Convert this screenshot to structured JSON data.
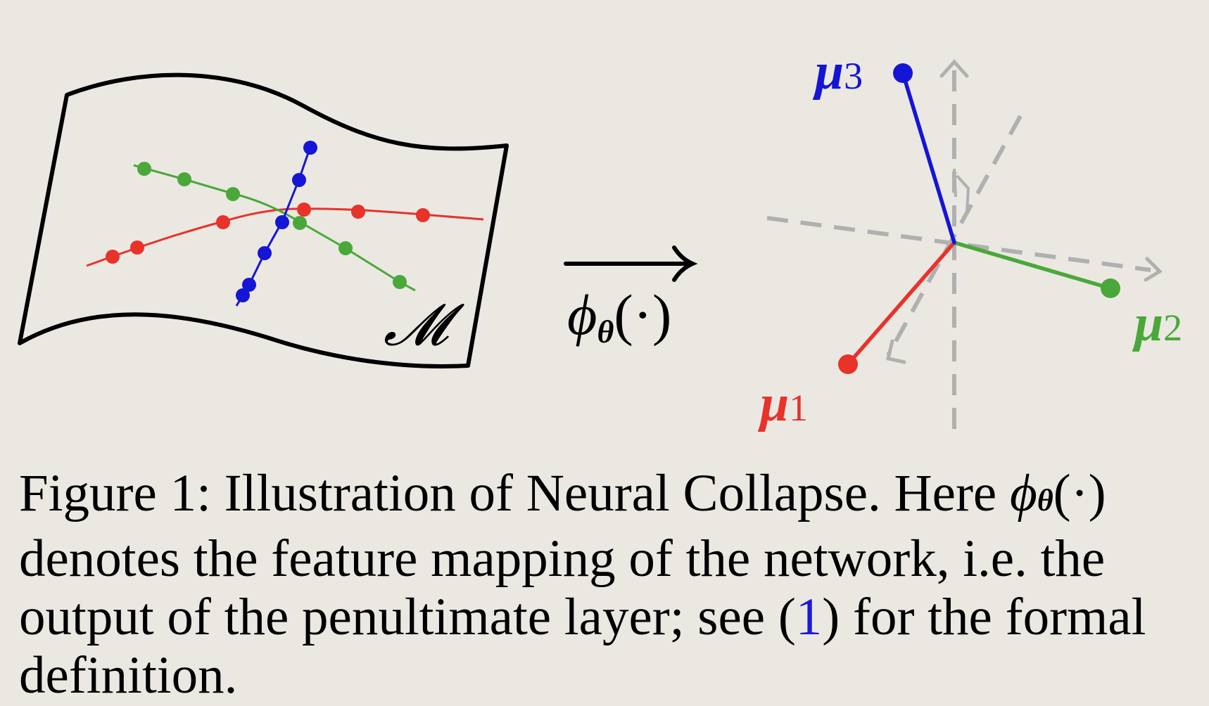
{
  "figure": {
    "manifold_label": "𝓜",
    "mapping_label": {
      "phi": "ϕ",
      "subscript": "θ",
      "argument": "(·)"
    },
    "class_means": [
      {
        "symbol": "μ",
        "index": "1",
        "color": "#e8322a"
      },
      {
        "symbol": "μ",
        "index": "2",
        "color": "#4aa83a"
      },
      {
        "symbol": "μ",
        "index": "3",
        "color": "#1515d6"
      }
    ],
    "colors": {
      "red": "#e8322a",
      "green": "#4aa83a",
      "blue": "#1515d6",
      "axis_gray": "#b0b0b0",
      "outline": "#000000"
    }
  },
  "caption": {
    "line1_prefix": "Figure 1: Illustration of Neural Collapse. Here ",
    "phi": "ϕ",
    "phi_subscript": "θ",
    "phi_argument": "(·)",
    "line2": "denotes the feature mapping of the network, i.e. the",
    "line3_prefix": "output of the penultimate layer; see (",
    "reference": "1",
    "line3_suffix": ") for the formal",
    "line4": "definition."
  }
}
